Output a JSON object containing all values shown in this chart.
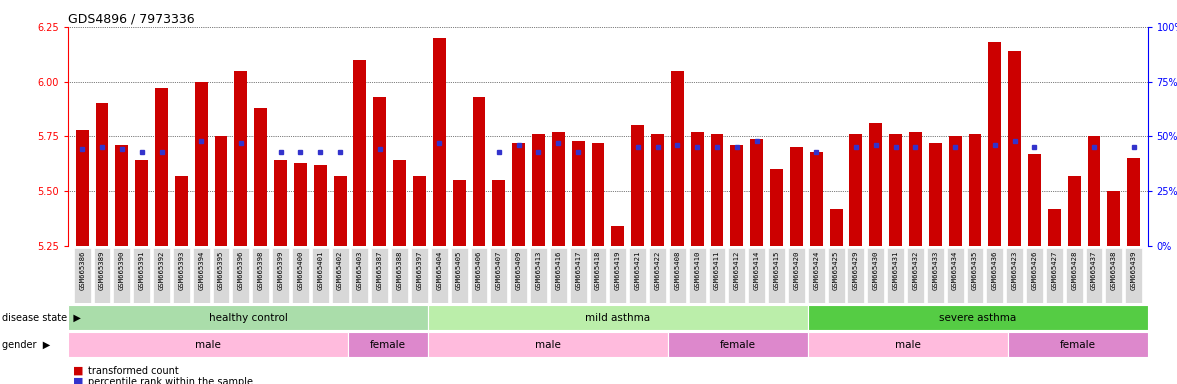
{
  "title": "GDS4896 / 7973336",
  "samples": [
    "GSM665386",
    "GSM665389",
    "GSM665390",
    "GSM665391",
    "GSM665392",
    "GSM665393",
    "GSM665394",
    "GSM665395",
    "GSM665396",
    "GSM665398",
    "GSM665399",
    "GSM665400",
    "GSM665401",
    "GSM665402",
    "GSM665403",
    "GSM665387",
    "GSM665388",
    "GSM665397",
    "GSM665404",
    "GSM665405",
    "GSM665406",
    "GSM665407",
    "GSM665409",
    "GSM665413",
    "GSM665416",
    "GSM665417",
    "GSM665418",
    "GSM665419",
    "GSM665421",
    "GSM665422",
    "GSM665408",
    "GSM665410",
    "GSM665411",
    "GSM665412",
    "GSM665414",
    "GSM665415",
    "GSM665420",
    "GSM665424",
    "GSM665425",
    "GSM665429",
    "GSM665430",
    "GSM665431",
    "GSM665432",
    "GSM665433",
    "GSM665434",
    "GSM665435",
    "GSM665436",
    "GSM665423",
    "GSM665426",
    "GSM665427",
    "GSM665428",
    "GSM665437",
    "GSM665438",
    "GSM665439"
  ],
  "bar_values": [
    5.78,
    5.9,
    5.71,
    5.64,
    5.97,
    5.57,
    6.0,
    5.75,
    6.05,
    5.88,
    5.64,
    5.63,
    5.62,
    5.57,
    6.1,
    5.93,
    5.64,
    5.57,
    6.2,
    5.55,
    5.93,
    5.55,
    5.72,
    5.76,
    5.77,
    5.73,
    5.72,
    5.34,
    5.8,
    5.76,
    6.05,
    5.77,
    5.76,
    5.71,
    5.74,
    5.6,
    5.7,
    5.68,
    5.42,
    5.76,
    5.81,
    5.76,
    5.77,
    5.72,
    5.75,
    5.76,
    6.18,
    6.14,
    5.67,
    5.42,
    5.57,
    5.75,
    5.5,
    5.65
  ],
  "percentile_values": [
    5.69,
    5.7,
    5.69,
    5.68,
    5.68,
    null,
    5.73,
    null,
    5.72,
    null,
    5.68,
    5.68,
    5.68,
    5.68,
    null,
    5.69,
    null,
    null,
    5.72,
    null,
    null,
    5.68,
    5.71,
    5.68,
    5.72,
    5.68,
    null,
    null,
    5.7,
    5.7,
    5.71,
    5.7,
    5.7,
    5.7,
    5.73,
    null,
    null,
    5.68,
    null,
    5.7,
    5.71,
    5.7,
    5.7,
    null,
    5.7,
    null,
    5.71,
    5.73,
    5.7,
    null,
    null,
    5.7,
    null,
    5.7
  ],
  "disease_state_groups": [
    {
      "label": "healthy control",
      "start": 0,
      "end": 18,
      "color": "#aaddaa"
    },
    {
      "label": "mild asthma",
      "start": 18,
      "end": 37,
      "color": "#bbeeaa"
    },
    {
      "label": "severe asthma",
      "start": 37,
      "end": 54,
      "color": "#55cc44"
    }
  ],
  "gender_groups": [
    {
      "label": "male",
      "start": 0,
      "end": 14,
      "color": "#ffbbdd"
    },
    {
      "label": "female",
      "start": 14,
      "end": 18,
      "color": "#dd88cc"
    },
    {
      "label": "male",
      "start": 18,
      "end": 30,
      "color": "#ffbbdd"
    },
    {
      "label": "female",
      "start": 30,
      "end": 37,
      "color": "#dd88cc"
    },
    {
      "label": "male",
      "start": 37,
      "end": 47,
      "color": "#ffbbdd"
    },
    {
      "label": "female",
      "start": 47,
      "end": 54,
      "color": "#dd88cc"
    }
  ],
  "ylim": [
    5.25,
    6.25
  ],
  "yticks_left": [
    5.25,
    5.5,
    5.75,
    6.0,
    6.25
  ],
  "yticks_right": [
    0,
    25,
    50,
    75,
    100
  ],
  "bar_color": "#CC0000",
  "dot_color": "#3333CC"
}
